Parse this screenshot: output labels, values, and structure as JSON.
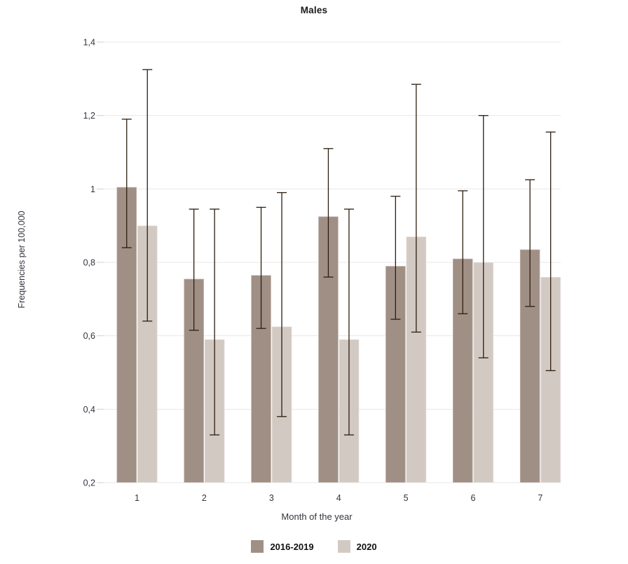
{
  "chart_data": {
    "type": "bar",
    "title": "Males",
    "xlabel": "Month of the year",
    "ylabel": "Frequencies per 100,000",
    "categories": [
      "1",
      "2",
      "3",
      "4",
      "5",
      "6",
      "7"
    ],
    "series": [
      {
        "name": "2016-2019",
        "color": "#a08f85",
        "values": [
          1.005,
          0.755,
          0.765,
          0.925,
          0.79,
          0.81,
          0.835
        ],
        "error_low": [
          0.84,
          0.615,
          0.62,
          0.76,
          0.645,
          0.66,
          0.68
        ],
        "error_high": [
          1.19,
          0.945,
          0.95,
          1.11,
          0.98,
          0.995,
          1.025
        ]
      },
      {
        "name": "2020",
        "color": "#d3c9c3",
        "values": [
          0.9,
          0.59,
          0.625,
          0.59,
          0.87,
          0.8,
          0.76
        ],
        "error_low": [
          0.64,
          0.33,
          0.38,
          0.33,
          0.61,
          0.54,
          0.505
        ],
        "error_high": [
          1.325,
          0.945,
          0.99,
          0.945,
          1.285,
          1.2,
          1.155
        ]
      }
    ],
    "ylim": [
      0.2,
      1.4
    ],
    "ytick_labels": [
      "0,2",
      "0,4",
      "0,6",
      "0,8",
      "1",
      "1,2",
      "1,4"
    ],
    "decimal_separator": ",",
    "grid": true,
    "legend_position": "bottom",
    "colors": {
      "grid": "#e7e7e7",
      "tick": "#cfcfcf",
      "error_bar": "#2e1d0e",
      "axis_text": "#33333e",
      "title_text": "#1a1a1a"
    }
  }
}
